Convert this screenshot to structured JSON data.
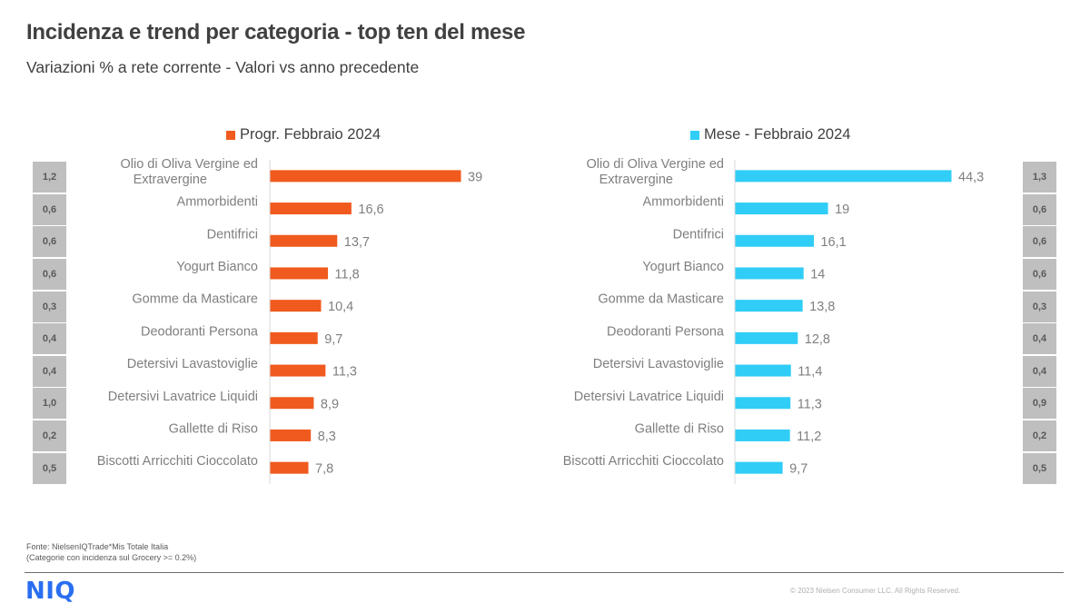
{
  "header": {
    "title": "Incidenza e trend per categoria - top ten del mese",
    "subtitle": "Variazioni  % a rete corrente - Valori  vs anno precedente"
  },
  "colors": {
    "progr": "#f05a1e",
    "mese": "#30cdf6",
    "box_bg": "#bfbfbf"
  },
  "chart_data": [
    {
      "type": "bar",
      "orientation": "horizontal",
      "legend": "Progr. Febbraio 2024",
      "legend_position": "top",
      "categories": [
        "Olio di Oliva Vergine ed Extravergine",
        "Ammorbidenti",
        "Dentifrici",
        "Yogurt Bianco",
        "Gomme da Masticare",
        "Deodoranti Persona",
        "Detersivi Lavastoviglie",
        "Detersivi Lavatrice Liquidi",
        "Gallette di Riso",
        "Biscotti Arricchiti Cioccolato"
      ],
      "values": [
        39,
        16.6,
        13.7,
        11.8,
        10.4,
        9.7,
        11.3,
        8.9,
        8.3,
        7.8
      ],
      "value_labels": [
        "39",
        "16,6",
        "13,7",
        "11,8",
        "10,4",
        "9,7",
        "11,3",
        "8,9",
        "8,3",
        "7,8"
      ],
      "incidenza": [
        "1,2",
        "0,6",
        "0,6",
        "0,6",
        "0,3",
        "0,4",
        "0,4",
        "1,0",
        "0,2",
        "0,5"
      ],
      "xlim": [
        0,
        39
      ],
      "grid": false
    },
    {
      "type": "bar",
      "orientation": "horizontal",
      "legend": "Mese - Febbraio 2024",
      "legend_position": "top",
      "categories": [
        "Olio di Oliva Vergine ed Extravergine",
        "Ammorbidenti",
        "Dentifrici",
        "Yogurt Bianco",
        "Gomme da Masticare",
        "Deodoranti Persona",
        "Detersivi Lavastoviglie",
        "Detersivi Lavatrice Liquidi",
        "Gallette di Riso",
        "Biscotti Arricchiti Cioccolato"
      ],
      "values": [
        44.3,
        19,
        16.1,
        14,
        13.8,
        12.8,
        11.4,
        11.3,
        11.2,
        9.7
      ],
      "value_labels": [
        "44,3",
        "19",
        "16,1",
        "14",
        "13,8",
        "12,8",
        "11,4",
        "11,3",
        "11,2",
        "9,7"
      ],
      "incidenza": [
        "1,3",
        "0,6",
        "0,6",
        "0,6",
        "0,3",
        "0,4",
        "0,4",
        "0,9",
        "0,2",
        "0,5"
      ],
      "xlim": [
        0,
        44.3
      ],
      "grid": false
    }
  ],
  "footer": {
    "source_line1": "Fonte: NielsenIQTrade*Mis  Totale Italia",
    "source_line2": "(Categorie con incidenza sul Grocery >= 0.2%)",
    "logo": "NIQ",
    "copyright": "© 2023  Nielsen Consumer LLC. All Rights Reserved."
  }
}
